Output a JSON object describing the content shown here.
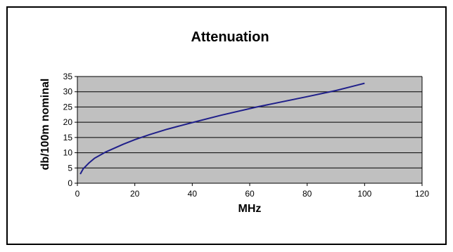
{
  "chart_data": {
    "type": "line",
    "title": "Attenuation",
    "xlabel": "MHz",
    "ylabel": "db/100m nominal",
    "xlim": [
      0,
      120
    ],
    "ylim": [
      0,
      35
    ],
    "x_ticks": [
      "0",
      "20",
      "40",
      "60",
      "80",
      "100",
      "120"
    ],
    "y_ticks": [
      "0",
      "5",
      "10",
      "15",
      "20",
      "25",
      "30",
      "35"
    ],
    "grid": true,
    "legend": "none",
    "colors": {
      "line": "#1f1f8a",
      "plot_bg": "#c0c0c0",
      "grid": "#000000"
    },
    "series": [
      {
        "x": [
          1,
          2,
          4,
          6,
          10,
          16,
          20,
          25,
          31.25,
          40,
          50,
          62.5,
          80,
          90,
          100
        ],
        "values": [
          3.0,
          4.7,
          6.6,
          8.2,
          10.3,
          12.8,
          14.3,
          15.9,
          17.7,
          19.9,
          22.3,
          25.0,
          28.4,
          30.4,
          32.8
        ]
      }
    ]
  }
}
